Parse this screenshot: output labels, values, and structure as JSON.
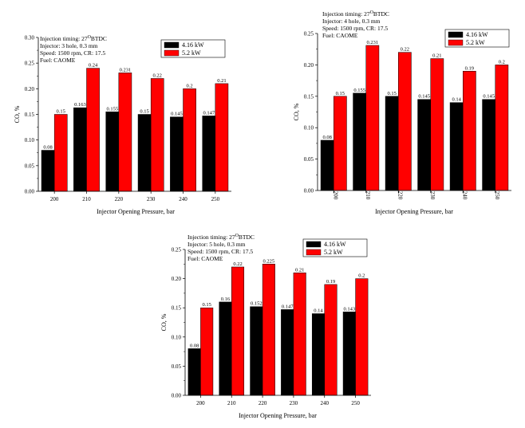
{
  "colors": {
    "series_a": "#000000",
    "series_b": "#ff0000",
    "axis": "#000000"
  },
  "chart_data": [
    {
      "type": "bar",
      "categories": [
        "200",
        "210",
        "220",
        "230",
        "240",
        "250"
      ],
      "series": [
        {
          "name": "4.16 kW",
          "values": [
            0.08,
            0.163,
            0.155,
            0.15,
            0.145,
            0.147
          ]
        },
        {
          "name": "5.2 kW",
          "values": [
            0.15,
            0.24,
            0.231,
            0.22,
            0.2,
            0.21
          ]
        }
      ],
      "data_labels": [
        [
          "0.08",
          "0.163",
          "0.155",
          "0.15",
          "0.145",
          "0.147"
        ],
        [
          "0.15",
          "0.24",
          "0.231",
          "0.22",
          "0.2",
          "0.21"
        ]
      ],
      "ylim": [
        0,
        0.3
      ],
      "yticks": [
        "0.00",
        "0.05",
        "0.10",
        "0.15",
        "0.20",
        "0.25",
        "0.30"
      ],
      "xlabel": "Injector Opening Pressure, bar",
      "ylabel": "CO, %",
      "annotation": {
        "line1_prefix": "Injection timing: 27",
        "line1_sup": "O",
        "line1_suffix": "BTDC",
        "line2": "Injector: 3 hole, 0.3 mm",
        "line3": "Speed: 1500 rpm, CR: 17.5",
        "line4": "Fuel: CAOME"
      },
      "legend_position": "top-right",
      "grid": false
    },
    {
      "type": "bar",
      "categories": [
        "200",
        "210",
        "220",
        "230",
        "240",
        "250"
      ],
      "series": [
        {
          "name": "4.16 kW",
          "values": [
            0.08,
            0.155,
            0.15,
            0.145,
            0.14,
            0.145
          ]
        },
        {
          "name": "5.2 kW",
          "values": [
            0.15,
            0.231,
            0.22,
            0.21,
            0.19,
            0.2
          ]
        }
      ],
      "data_labels": [
        [
          "0.08",
          "0.155",
          "0.15",
          "0.145",
          "0.14",
          "0.145"
        ],
        [
          "0.15",
          "0.231",
          "0.22",
          "0.21",
          "0.19",
          "0.2"
        ]
      ],
      "ylim": [
        0,
        0.25
      ],
      "yticks": [
        "0.00",
        "0.05",
        "0.10",
        "0.15",
        "0.20",
        "0.25"
      ],
      "xlabel": "Injector Opening Pressure, bar",
      "ylabel": "CO, %",
      "annotation": {
        "line1_prefix": "Injection timing: 27",
        "line1_sup": "O",
        "line1_suffix": "BTDC",
        "line2": "Injector: 4 hole, 0.3 mm",
        "line3": "Speed: 1500 rpm, CR: 17.5",
        "line4": "Fuel: CAOME"
      },
      "legend_position": "top-right",
      "grid": false
    },
    {
      "type": "bar",
      "categories": [
        "200",
        "210",
        "220",
        "230",
        "240",
        "250"
      ],
      "series": [
        {
          "name": "4.16 kW",
          "values": [
            0.08,
            0.16,
            0.152,
            0.147,
            0.14,
            0.143
          ]
        },
        {
          "name": "5.2 kW",
          "values": [
            0.15,
            0.22,
            0.225,
            0.21,
            0.19,
            0.2
          ]
        }
      ],
      "data_labels": [
        [
          "0.08",
          "0.16",
          "0.152",
          "0.147",
          "0.14",
          "0.143"
        ],
        [
          "0.15",
          "0.22",
          "0.225",
          "0.21",
          "0.19",
          "0.2"
        ]
      ],
      "ylim": [
        0,
        0.25
      ],
      "yticks": [
        "0.00",
        "0.05",
        "0.10",
        "0.15",
        "0.20",
        "0.25"
      ],
      "xlabel": "Injector Opening Pressure, bar",
      "ylabel": "CO, %",
      "annotation": {
        "line1_prefix": "Injection timing: 27",
        "line1_sup": "O",
        "line1_suffix": "BTDC",
        "line2": "Injector: 5 hole, 0.3 mm",
        "line3": "Speed: 1500 rpm, CR: 17.5",
        "line4": "Fuel: CAOME"
      },
      "legend_position": "top-right",
      "grid": false
    }
  ]
}
